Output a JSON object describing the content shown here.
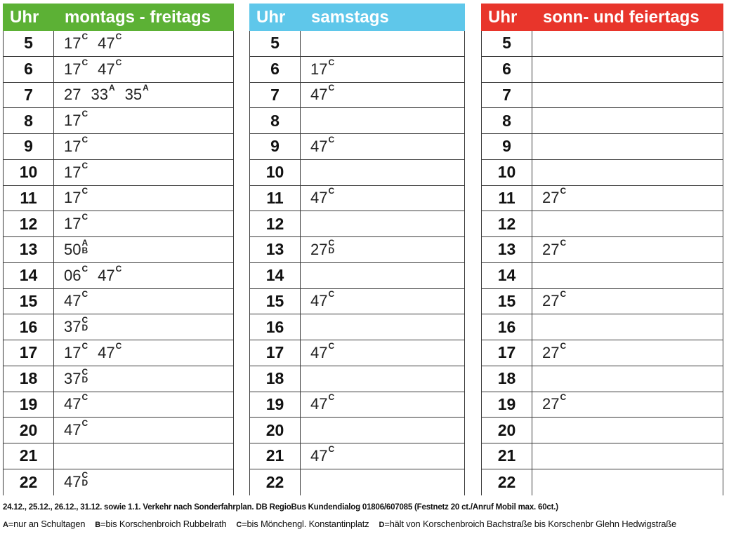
{
  "tables": [
    {
      "key": "wk",
      "uhr_label": "Uhr",
      "day_label": "montags - freitags",
      "header_color": "#5cb135",
      "rows": [
        {
          "hour": "5",
          "deps": [
            {
              "min": "17",
              "marks": [
                "C"
              ]
            },
            {
              "min": "47",
              "marks": [
                "C"
              ]
            }
          ]
        },
        {
          "hour": "6",
          "deps": [
            {
              "min": "17",
              "marks": [
                "C"
              ]
            },
            {
              "min": "47",
              "marks": [
                "C"
              ]
            }
          ]
        },
        {
          "hour": "7",
          "deps": [
            {
              "min": "27",
              "marks": []
            },
            {
              "min": "33",
              "marks": [
                "A"
              ]
            },
            {
              "min": "35",
              "marks": [
                "A"
              ]
            }
          ]
        },
        {
          "hour": "8",
          "deps": [
            {
              "min": "17",
              "marks": [
                "C"
              ]
            }
          ]
        },
        {
          "hour": "9",
          "deps": [
            {
              "min": "17",
              "marks": [
                "C"
              ]
            }
          ]
        },
        {
          "hour": "10",
          "deps": [
            {
              "min": "17",
              "marks": [
                "C"
              ]
            }
          ]
        },
        {
          "hour": "11",
          "deps": [
            {
              "min": "17",
              "marks": [
                "C"
              ]
            }
          ]
        },
        {
          "hour": "12",
          "deps": [
            {
              "min": "17",
              "marks": [
                "C"
              ]
            }
          ]
        },
        {
          "hour": "13",
          "deps": [
            {
              "min": "50",
              "marks": [
                "A",
                "B"
              ]
            }
          ]
        },
        {
          "hour": "14",
          "deps": [
            {
              "min": "06",
              "marks": [
                "C"
              ]
            },
            {
              "min": "47",
              "marks": [
                "C"
              ]
            }
          ]
        },
        {
          "hour": "15",
          "deps": [
            {
              "min": "47",
              "marks": [
                "C"
              ]
            }
          ]
        },
        {
          "hour": "16",
          "deps": [
            {
              "min": "37",
              "marks": [
                "C",
                "D"
              ]
            }
          ]
        },
        {
          "hour": "17",
          "deps": [
            {
              "min": "17",
              "marks": [
                "C"
              ]
            },
            {
              "min": "47",
              "marks": [
                "C"
              ]
            }
          ]
        },
        {
          "hour": "18",
          "deps": [
            {
              "min": "37",
              "marks": [
                "C",
                "D"
              ]
            }
          ]
        },
        {
          "hour": "19",
          "deps": [
            {
              "min": "47",
              "marks": [
                "C"
              ]
            }
          ]
        },
        {
          "hour": "20",
          "deps": [
            {
              "min": "47",
              "marks": [
                "C"
              ]
            }
          ]
        },
        {
          "hour": "21",
          "deps": []
        },
        {
          "hour": "22",
          "deps": [
            {
              "min": "47",
              "marks": [
                "C",
                "D"
              ]
            }
          ]
        }
      ]
    },
    {
      "key": "sa",
      "uhr_label": "Uhr",
      "day_label": "samstags",
      "header_color": "#5fc7ea",
      "rows": [
        {
          "hour": "5",
          "deps": []
        },
        {
          "hour": "6",
          "deps": [
            {
              "min": "17",
              "marks": [
                "C"
              ]
            }
          ]
        },
        {
          "hour": "7",
          "deps": [
            {
              "min": "47",
              "marks": [
                "C"
              ]
            }
          ]
        },
        {
          "hour": "8",
          "deps": []
        },
        {
          "hour": "9",
          "deps": [
            {
              "min": "47",
              "marks": [
                "C"
              ]
            }
          ]
        },
        {
          "hour": "10",
          "deps": []
        },
        {
          "hour": "11",
          "deps": [
            {
              "min": "47",
              "marks": [
                "C"
              ]
            }
          ]
        },
        {
          "hour": "12",
          "deps": []
        },
        {
          "hour": "13",
          "deps": [
            {
              "min": "27",
              "marks": [
                "C",
                "D"
              ]
            }
          ]
        },
        {
          "hour": "14",
          "deps": []
        },
        {
          "hour": "15",
          "deps": [
            {
              "min": "47",
              "marks": [
                "C"
              ]
            }
          ]
        },
        {
          "hour": "16",
          "deps": []
        },
        {
          "hour": "17",
          "deps": [
            {
              "min": "47",
              "marks": [
                "C"
              ]
            }
          ]
        },
        {
          "hour": "18",
          "deps": []
        },
        {
          "hour": "19",
          "deps": [
            {
              "min": "47",
              "marks": [
                "C"
              ]
            }
          ]
        },
        {
          "hour": "20",
          "deps": []
        },
        {
          "hour": "21",
          "deps": [
            {
              "min": "47",
              "marks": [
                "C"
              ]
            }
          ]
        },
        {
          "hour": "22",
          "deps": []
        }
      ]
    },
    {
      "key": "so",
      "uhr_label": "Uhr",
      "day_label": "sonn- und feiertags",
      "header_color": "#e8352b",
      "rows": [
        {
          "hour": "5",
          "deps": []
        },
        {
          "hour": "6",
          "deps": []
        },
        {
          "hour": "7",
          "deps": []
        },
        {
          "hour": "8",
          "deps": []
        },
        {
          "hour": "9",
          "deps": []
        },
        {
          "hour": "10",
          "deps": []
        },
        {
          "hour": "11",
          "deps": [
            {
              "min": "27",
              "marks": [
                "C"
              ]
            }
          ]
        },
        {
          "hour": "12",
          "deps": []
        },
        {
          "hour": "13",
          "deps": [
            {
              "min": "27",
              "marks": [
                "C"
              ]
            }
          ]
        },
        {
          "hour": "14",
          "deps": []
        },
        {
          "hour": "15",
          "deps": [
            {
              "min": "27",
              "marks": [
                "C"
              ]
            }
          ]
        },
        {
          "hour": "16",
          "deps": []
        },
        {
          "hour": "17",
          "deps": [
            {
              "min": "27",
              "marks": [
                "C"
              ]
            }
          ]
        },
        {
          "hour": "18",
          "deps": []
        },
        {
          "hour": "19",
          "deps": [
            {
              "min": "27",
              "marks": [
                "C"
              ]
            }
          ]
        },
        {
          "hour": "20",
          "deps": []
        },
        {
          "hour": "21",
          "deps": []
        },
        {
          "hour": "22",
          "deps": []
        }
      ]
    }
  ],
  "footer": {
    "note": "24.12., 25.12., 26.12., 31.12. sowie 1.1. Verkehr nach Sonderfahrplan. DB RegioBus Kundendialog 01806/607085 (Festnetz 20 ct./Anruf Mobil max. 60ct.)",
    "legend": [
      {
        "key": "A",
        "text": "=nur an Schultagen"
      },
      {
        "key": "B",
        "text": "=bis Korschenbroich Rubbelrath"
      },
      {
        "key": "C",
        "text": "=bis Mönchengl. Konstantinplatz"
      },
      {
        "key": "D",
        "text": "=hält von Korschenbroich Bachstraße bis Korschenbr Glehn Hedwigstraße"
      }
    ]
  }
}
